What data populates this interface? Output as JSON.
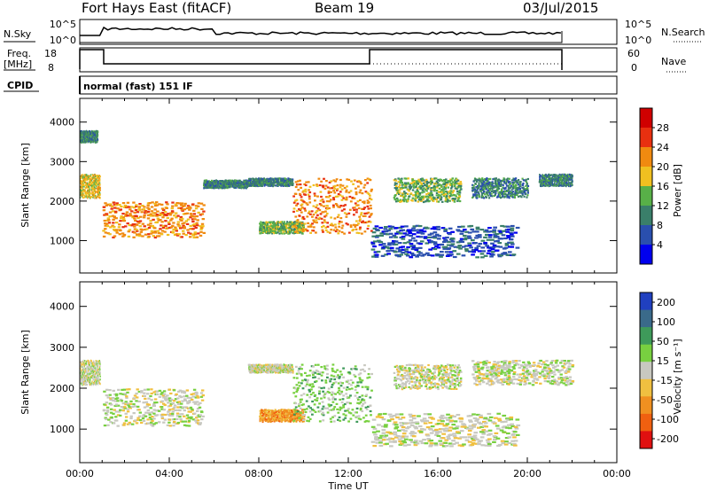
{
  "header": {
    "station": "Fort Hays East (fitACF)",
    "beam": "Beam 19",
    "date": "03/Jul/2015"
  },
  "top_panels": {
    "nsky_label": "N.Sky",
    "nsky_ticks": [
      "10^5",
      "10^0"
    ],
    "nsearch_label": "N.Search",
    "nsearch_ticks": [
      "10^5",
      "10^0"
    ],
    "freq_label_1": "Freq.",
    "freq_label_2": "[MHz]",
    "freq_ticks": [
      "18",
      "8"
    ],
    "nave_label": "Nave",
    "nave_ticks": [
      "60",
      "0"
    ],
    "cpid_label": "CPID",
    "cpid_text": "normal (fast) 151 IF"
  },
  "chart_data": [
    {
      "type": "heatmap",
      "panel": "power",
      "ylabel": "Slant Range [km]",
      "xlabel": "Time UT",
      "x_ticks": [
        "00:00",
        "04:00",
        "08:00",
        "12:00",
        "16:00",
        "20:00",
        "00:00"
      ],
      "x_range_hours": [
        0,
        24
      ],
      "y_ticks": [
        "1000",
        "2000",
        "3000",
        "4000"
      ],
      "y_range_km": [
        180,
        4600
      ],
      "colorbar_label": "Power [dB]",
      "colorbar_ticks": [
        "4",
        "8",
        "12",
        "16",
        "20",
        "24",
        "28"
      ],
      "colorbar_colors": [
        "#0000ee",
        "#2a4fae",
        "#3a7f6a",
        "#58b048",
        "#f0c020",
        "#f08a10",
        "#e83010",
        "#d00000"
      ],
      "features": [
        {
          "t0": 0.0,
          "t1": 0.9,
          "r0": 2100,
          "r1": 2700,
          "level": 4
        },
        {
          "t0": 0.0,
          "t1": 0.8,
          "r0": 3500,
          "r1": 3800,
          "level": 2
        },
        {
          "t0": 1.0,
          "t1": 5.5,
          "r0": 1100,
          "r1": 2000,
          "level": 5
        },
        {
          "t0": 5.5,
          "t1": 7.5,
          "r0": 2350,
          "r1": 2550,
          "level": 2
        },
        {
          "t0": 7.5,
          "t1": 9.5,
          "r0": 2400,
          "r1": 2600,
          "level": 2
        },
        {
          "t0": 8.0,
          "t1": 10.0,
          "r0": 1200,
          "r1": 1500,
          "level": 3
        },
        {
          "t0": 9.5,
          "t1": 13.0,
          "r0": 1200,
          "r1": 2600,
          "level": 5
        },
        {
          "t0": 13.0,
          "t1": 19.5,
          "r0": 600,
          "r1": 1400,
          "level": 1
        },
        {
          "t0": 14.0,
          "t1": 17.0,
          "r0": 2000,
          "r1": 2600,
          "level": 3
        },
        {
          "t0": 17.5,
          "t1": 20.0,
          "r0": 2100,
          "r1": 2600,
          "level": 2
        },
        {
          "t0": 20.5,
          "t1": 22.0,
          "r0": 2400,
          "r1": 2700,
          "level": 2
        }
      ]
    },
    {
      "type": "heatmap",
      "panel": "velocity",
      "ylabel": "Slant Range [km]",
      "xlabel": "Time UT",
      "x_ticks": [
        "00:00",
        "04:00",
        "08:00",
        "12:00",
        "16:00",
        "20:00",
        "00:00"
      ],
      "x_range_hours": [
        0,
        24
      ],
      "y_ticks": [
        "1000",
        "2000",
        "3000",
        "4000"
      ],
      "y_range_km": [
        180,
        4600
      ],
      "colorbar_label": "Velocity [m s⁻¹]",
      "colorbar_ticks": [
        "200",
        "100",
        "50",
        "15",
        "-15",
        "-50",
        "-100",
        "-200"
      ],
      "colorbar_colors": [
        "#2040c0",
        "#3a6a8a",
        "#3e9a5a",
        "#78d040",
        "#c8c8c0",
        "#f0c040",
        "#f09020",
        "#f06010",
        "#e01010"
      ],
      "features": [
        {
          "t0": 0.0,
          "t1": 0.9,
          "r0": 2100,
          "r1": 2700,
          "level": 4
        },
        {
          "t0": 1.0,
          "t1": 5.5,
          "r0": 1100,
          "r1": 2000,
          "level": 4
        },
        {
          "t0": 7.5,
          "t1": 9.5,
          "r0": 2400,
          "r1": 2600,
          "level": 4
        },
        {
          "t0": 8.0,
          "t1": 10.0,
          "r0": 1200,
          "r1": 1500,
          "level": 6
        },
        {
          "t0": 9.5,
          "t1": 13.0,
          "r0": 1200,
          "r1": 2600,
          "level": 3
        },
        {
          "t0": 13.0,
          "t1": 19.5,
          "r0": 600,
          "r1": 1400,
          "level": 4
        },
        {
          "t0": 14.0,
          "t1": 17.0,
          "r0": 2000,
          "r1": 2600,
          "level": 4
        },
        {
          "t0": 17.5,
          "t1": 22.0,
          "r0": 2100,
          "r1": 2700,
          "level": 4
        }
      ]
    }
  ]
}
